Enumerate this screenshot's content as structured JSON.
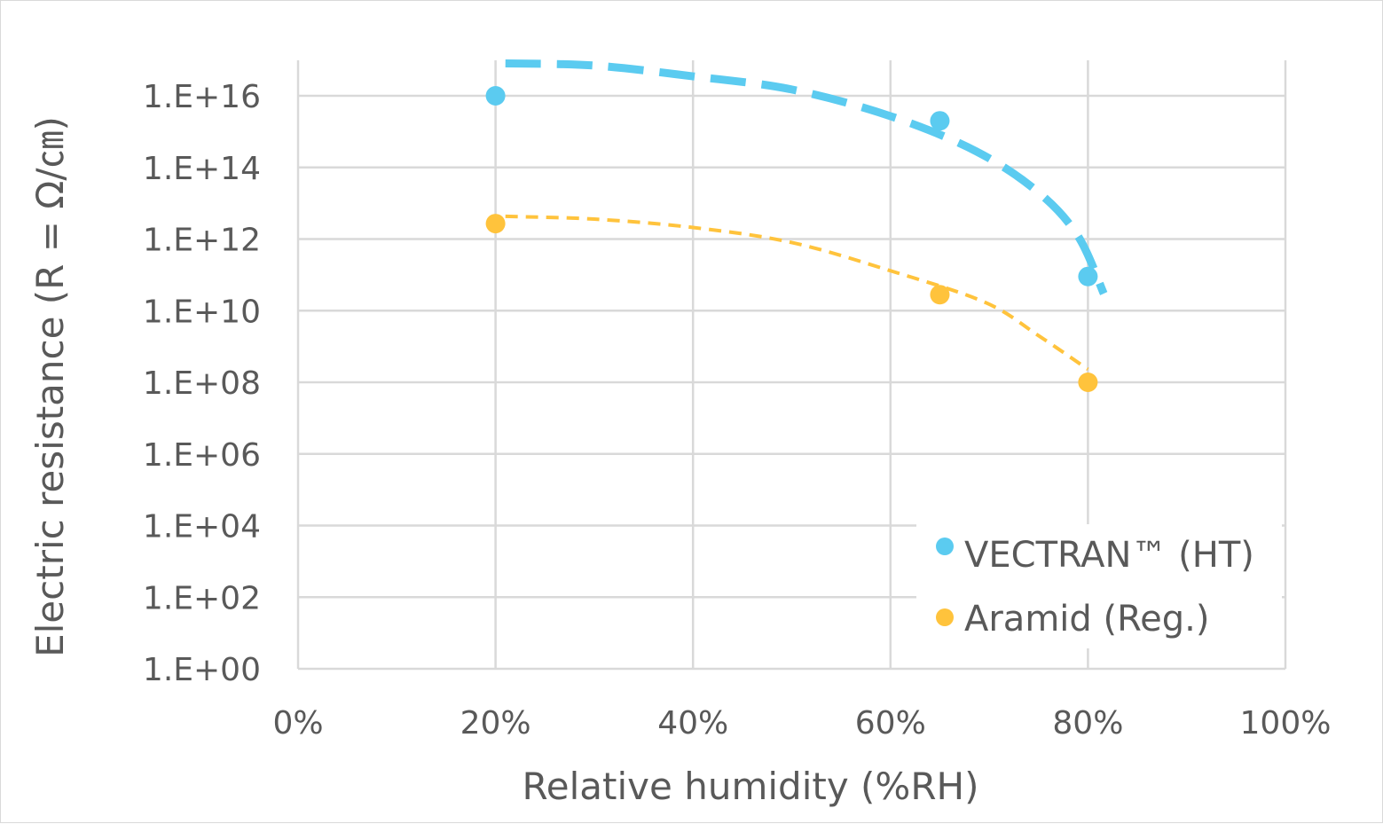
{
  "chart_data": {
    "type": "scatter",
    "title": "",
    "xlabel": "Relative humidity  (%RH)",
    "ylabel": "Electric resistance  (R = Ω/㎝)",
    "xlim": [
      0,
      100
    ],
    "ylim": [
      1,
      1e+17
    ],
    "y_scale": "log",
    "grid": true,
    "legend_position": "bottom-right",
    "x_ticks": [
      "0%",
      "20%",
      "40%",
      "60%",
      "80%",
      "100%"
    ],
    "y_ticks": [
      "1.E+00",
      "1.E+02",
      "1.E+04",
      "1.E+06",
      "1.E+08",
      "1.E+10",
      "1.E+12",
      "1.E+14",
      "1.E+16"
    ],
    "series": [
      {
        "name": "VECTRAN™ (HT)",
        "color": "#5BCBF0",
        "x": [
          20,
          65,
          80
        ],
        "y": [
          1e+16,
          2000000000000000.0,
          90000000000.0
        ],
        "trendline": {
          "style": "dashed",
          "x": [
            21,
            30,
            40,
            50,
            60,
            68.7,
            75,
            79,
            81.6
          ],
          "y": [
            8e+16,
            7e+16,
            3.5e+16,
            1.5e+16,
            2700000000000000.0,
            280000000000000.0,
            20000000000000.0,
            1200000000000.0,
            30000000000.0
          ]
        }
      },
      {
        "name": "Aramid (Reg.)",
        "color": "#FFC33C",
        "x": [
          20,
          65,
          80
        ],
        "y": [
          2700000000000.0,
          28000000000.0,
          100000000.0
        ],
        "trendline": {
          "style": "dashed",
          "x": [
            21,
            30,
            40,
            50,
            60,
            69.6,
            75,
            80
          ],
          "y": [
            4300000000000.0,
            3600000000000.0,
            2100000000000.0,
            800000000000.0,
            130000000000.0,
            17000000000.0,
            2000000000.0,
            230000000.0
          ]
        }
      }
    ]
  }
}
